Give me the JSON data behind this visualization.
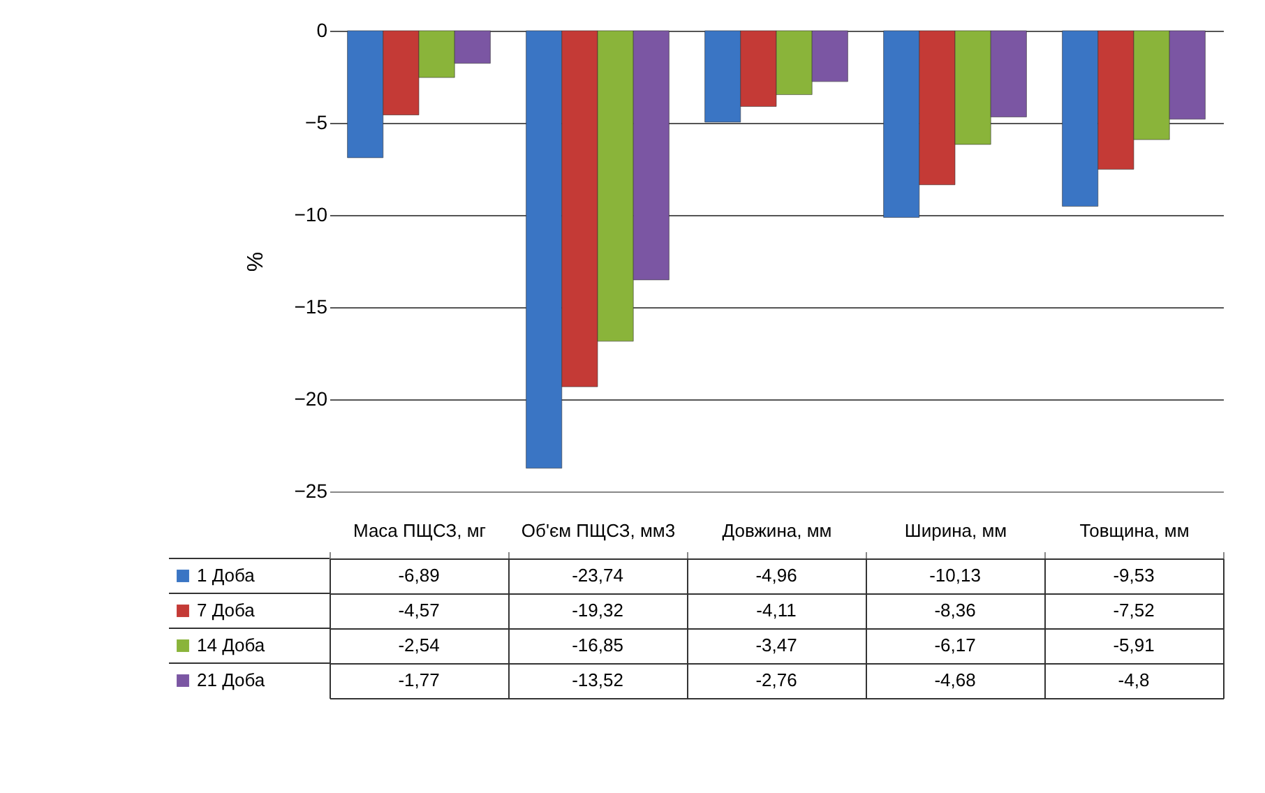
{
  "chart_data": {
    "type": "bar",
    "ylabel": "%",
    "categories": [
      "Маса ПЩСЗ, мг",
      "Об'єм ПЩСЗ, мм3",
      "Довжина, мм",
      "Ширина, мм",
      "Товщина, мм"
    ],
    "series": [
      {
        "name": "1 Доба",
        "color": "#3a75c4",
        "values": [
          -6.89,
          -23.74,
          -4.96,
          -10.13,
          -9.53
        ],
        "value_labels": [
          "-6,89",
          "-23,74",
          "-4,96",
          "-10,13",
          "-9,53"
        ]
      },
      {
        "name": "7 Доба",
        "color": "#c43a36",
        "values": [
          -4.57,
          -19.32,
          -4.11,
          -8.36,
          -7.52
        ],
        "value_labels": [
          "-4,57",
          "-19,32",
          "-4,11",
          "-8,36",
          "-7,52"
        ]
      },
      {
        "name": "14 Доба",
        "color": "#8ab43a",
        "values": [
          -2.54,
          -16.85,
          -3.47,
          -6.17,
          -5.91
        ],
        "value_labels": [
          "-2,54",
          "-16,85",
          "-3,47",
          "-6,17",
          "-5,91"
        ]
      },
      {
        "name": "21 Доба",
        "color": "#7b56a3",
        "values": [
          -1.77,
          -13.52,
          -2.76,
          -4.68,
          -4.8
        ],
        "value_labels": [
          "-1,77",
          "-13,52",
          "-2,76",
          "-4,68",
          "-4,8"
        ]
      }
    ],
    "ylim": [
      -25,
      0
    ],
    "yticks": [
      0,
      -5,
      -10,
      -15,
      -20,
      -25
    ],
    "grid": "y",
    "legend": "bottom left"
  }
}
